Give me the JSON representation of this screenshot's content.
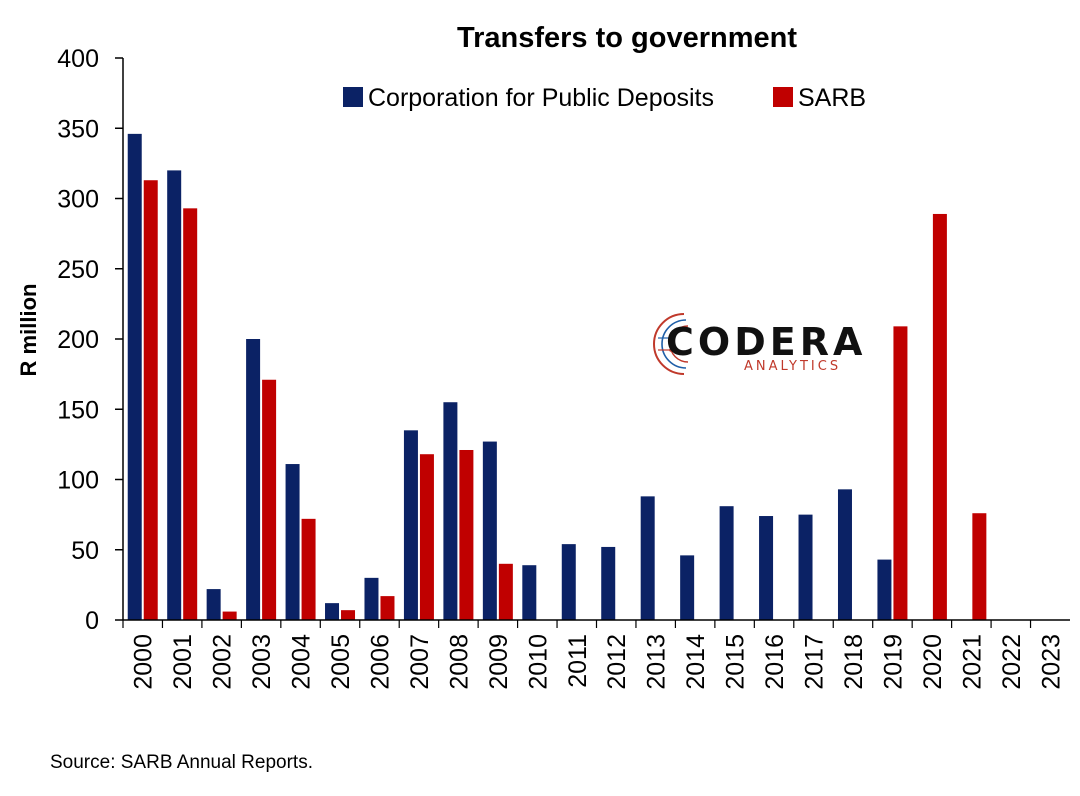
{
  "chart_data": {
    "type": "bar",
    "title": "Transfers to government",
    "ylabel": "R million",
    "xlabel": "",
    "ylim": [
      0,
      400
    ],
    "yticks": [
      0,
      50,
      100,
      150,
      200,
      250,
      300,
      350,
      400
    ],
    "categories": [
      "2000",
      "2001",
      "2002",
      "2003",
      "2004",
      "2005",
      "2006",
      "2007",
      "2008",
      "2009",
      "2010",
      "2011",
      "2012",
      "2013",
      "2014",
      "2015",
      "2016",
      "2017",
      "2018",
      "2019",
      "2020",
      "2021",
      "2022",
      "2023"
    ],
    "series": [
      {
        "name": "Corporation for Public Deposits",
        "color": "#0b2265",
        "values": [
          346,
          320,
          22,
          200,
          111,
          12,
          30,
          135,
          155,
          127,
          39,
          54,
          52,
          88,
          46,
          81,
          74,
          75,
          93,
          43,
          null,
          null,
          null,
          null
        ]
      },
      {
        "name": "SARB",
        "color": "#c00000",
        "values": [
          313,
          293,
          6,
          171,
          72,
          7,
          17,
          118,
          121,
          40,
          null,
          null,
          null,
          null,
          null,
          null,
          null,
          null,
          null,
          209,
          289,
          76,
          null,
          null
        ]
      }
    ],
    "legend_position": "top",
    "grid": false
  },
  "logo": {
    "word": "CODERA",
    "sub": "ANALYTICS"
  },
  "source": "Source: SARB Annual Reports."
}
